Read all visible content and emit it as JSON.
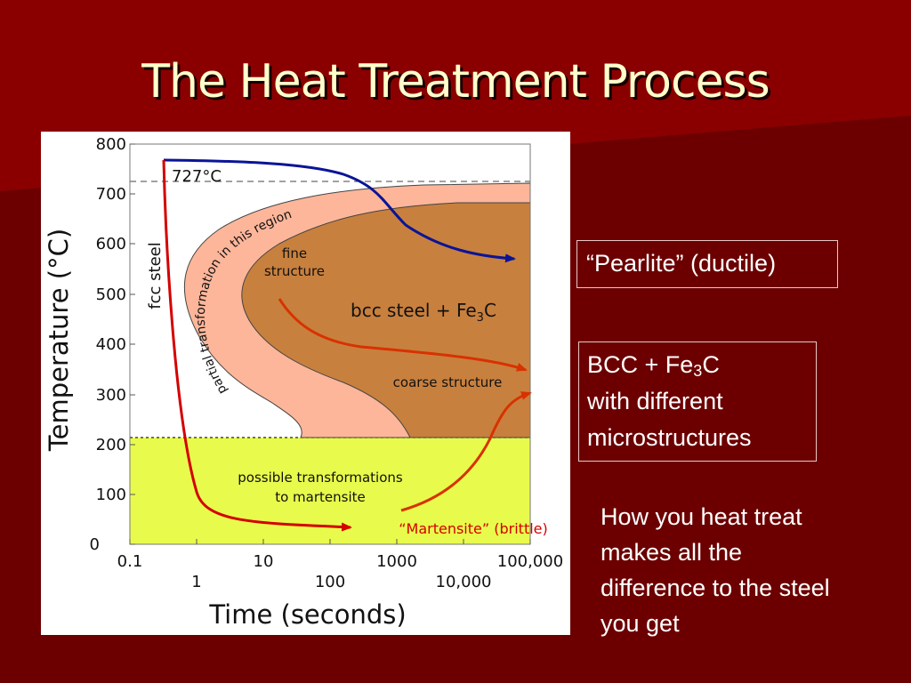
{
  "slide": {
    "title": "The Heat Treatment Process",
    "colors": {
      "background": "#6e0000",
      "title": "#ffffcc",
      "text": "#ffffff"
    }
  },
  "diagram": {
    "y_axis_label": "Temperature (°C)",
    "y_ticks": [
      "800",
      "700",
      "600",
      "500",
      "400",
      "300",
      "200",
      "100",
      "0"
    ],
    "x_axis_label": "Time (seconds)",
    "x_ticks_upper": [
      "0.1",
      "10",
      "1000",
      "100,000"
    ],
    "x_ticks_lower": [
      "1",
      "100",
      "10,000"
    ],
    "eutectoid_label": "727°C",
    "fcc_label": "fcc steel",
    "partial_label": "partial transformation in this region",
    "fine_line1": "fine",
    "fine_line2": "structure",
    "bcc_label_main": "bcc steel + Fe",
    "bcc_label_sub": "3",
    "bcc_label_end": "C",
    "coarse_label": "coarse structure",
    "martensite_region_line1": "possible transformations",
    "martensite_region_line2": "to martensite",
    "martensite_label": "“Martensite” (brittle)",
    "colors": {
      "partial_band": "#fdb69a",
      "bcc_region": "#c8803e",
      "martensite_zone": "#e8fb4c",
      "pearlite_curve": "#0a1496",
      "quench_curve": "#d40000",
      "red_arrows": "#d83200"
    }
  },
  "callouts": {
    "pearlite": "“Pearlite” (ductile)",
    "bcc_line1_main": "BCC + Fe",
    "bcc_line1_sub": "3",
    "bcc_line1_end": "C",
    "bcc_line2": "with different",
    "bcc_line3": "microstructures"
  },
  "note": {
    "line1": "How you heat treat",
    "line2": "makes all the",
    "line3": "difference to the steel",
    "line4": "you get"
  }
}
